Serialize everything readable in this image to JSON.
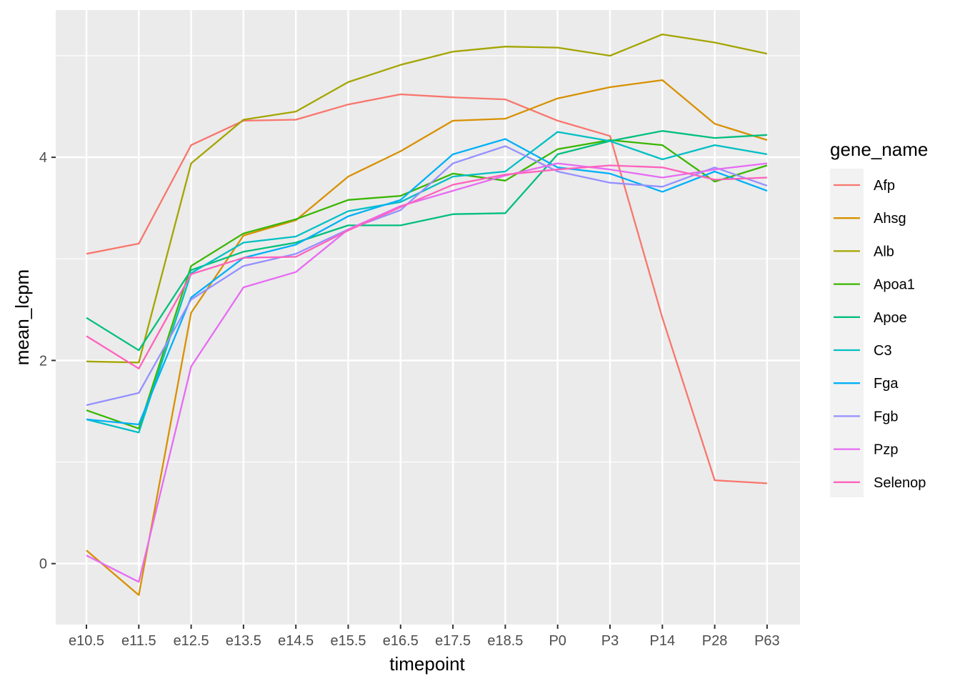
{
  "chart_data": {
    "type": "line",
    "xlabel": "timepoint",
    "ylabel": "mean_lcpm",
    "legend_title": "gene_name",
    "legend_position": "right",
    "grid": true,
    "ylim": [
      -0.6,
      5.45
    ],
    "y_ticks": [
      0,
      2,
      4
    ],
    "categories": [
      "e10.5",
      "e11.5",
      "e12.5",
      "e13.5",
      "e14.5",
      "e15.5",
      "e16.5",
      "e17.5",
      "e18.5",
      "P0",
      "P3",
      "P14",
      "P28",
      "P63"
    ],
    "series": [
      {
        "name": "Afp",
        "color": "#F8766D",
        "values": [
          3.05,
          3.15,
          4.12,
          4.36,
          4.37,
          4.52,
          4.62,
          4.59,
          4.57,
          4.36,
          4.21,
          2.42,
          0.82,
          0.79
        ]
      },
      {
        "name": "Ahsg",
        "color": "#D89000",
        "values": [
          0.13,
          -0.31,
          2.47,
          3.23,
          3.38,
          3.81,
          4.06,
          4.36,
          4.38,
          4.58,
          4.69,
          4.76,
          4.33,
          4.17
        ]
      },
      {
        "name": "Alb",
        "color": "#A3A500",
        "values": [
          1.99,
          1.98,
          3.94,
          4.37,
          4.45,
          4.74,
          4.91,
          5.04,
          5.09,
          5.08,
          5.0,
          5.21,
          5.13,
          5.02
        ]
      },
      {
        "name": "Apoa1",
        "color": "#39B600",
        "values": [
          1.51,
          1.33,
          2.93,
          3.25,
          3.39,
          3.58,
          3.62,
          3.84,
          3.77,
          4.08,
          4.17,
          4.12,
          3.76,
          3.92
        ]
      },
      {
        "name": "Apoe",
        "color": "#00BF7D",
        "values": [
          2.42,
          2.1,
          2.89,
          3.07,
          3.16,
          3.33,
          3.33,
          3.44,
          3.45,
          4.03,
          4.16,
          4.26,
          4.19,
          4.22
        ]
      },
      {
        "name": "C3",
        "color": "#00BFC4",
        "values": [
          1.42,
          1.29,
          2.86,
          3.16,
          3.22,
          3.47,
          3.56,
          3.81,
          3.86,
          4.25,
          4.16,
          3.98,
          4.12,
          4.03
        ]
      },
      {
        "name": "Fga",
        "color": "#00B0F6",
        "values": [
          1.42,
          1.37,
          2.62,
          3.01,
          3.14,
          3.42,
          3.58,
          4.03,
          4.18,
          3.9,
          3.84,
          3.66,
          3.86,
          3.67
        ]
      },
      {
        "name": "Fgb",
        "color": "#9590FF",
        "values": [
          1.56,
          1.68,
          2.6,
          2.93,
          3.05,
          3.29,
          3.48,
          3.94,
          4.11,
          3.86,
          3.75,
          3.71,
          3.9,
          3.72
        ]
      },
      {
        "name": "Pzp",
        "color": "#E76BF3",
        "values": [
          0.08,
          -0.18,
          1.94,
          2.72,
          2.87,
          3.29,
          3.52,
          3.67,
          3.82,
          3.94,
          3.88,
          3.8,
          3.88,
          3.94
        ]
      },
      {
        "name": "Selenop",
        "color": "#FF62BC",
        "values": [
          2.24,
          1.92,
          2.85,
          3.01,
          3.02,
          3.28,
          3.51,
          3.73,
          3.83,
          3.88,
          3.92,
          3.9,
          3.78,
          3.8
        ]
      }
    ]
  }
}
